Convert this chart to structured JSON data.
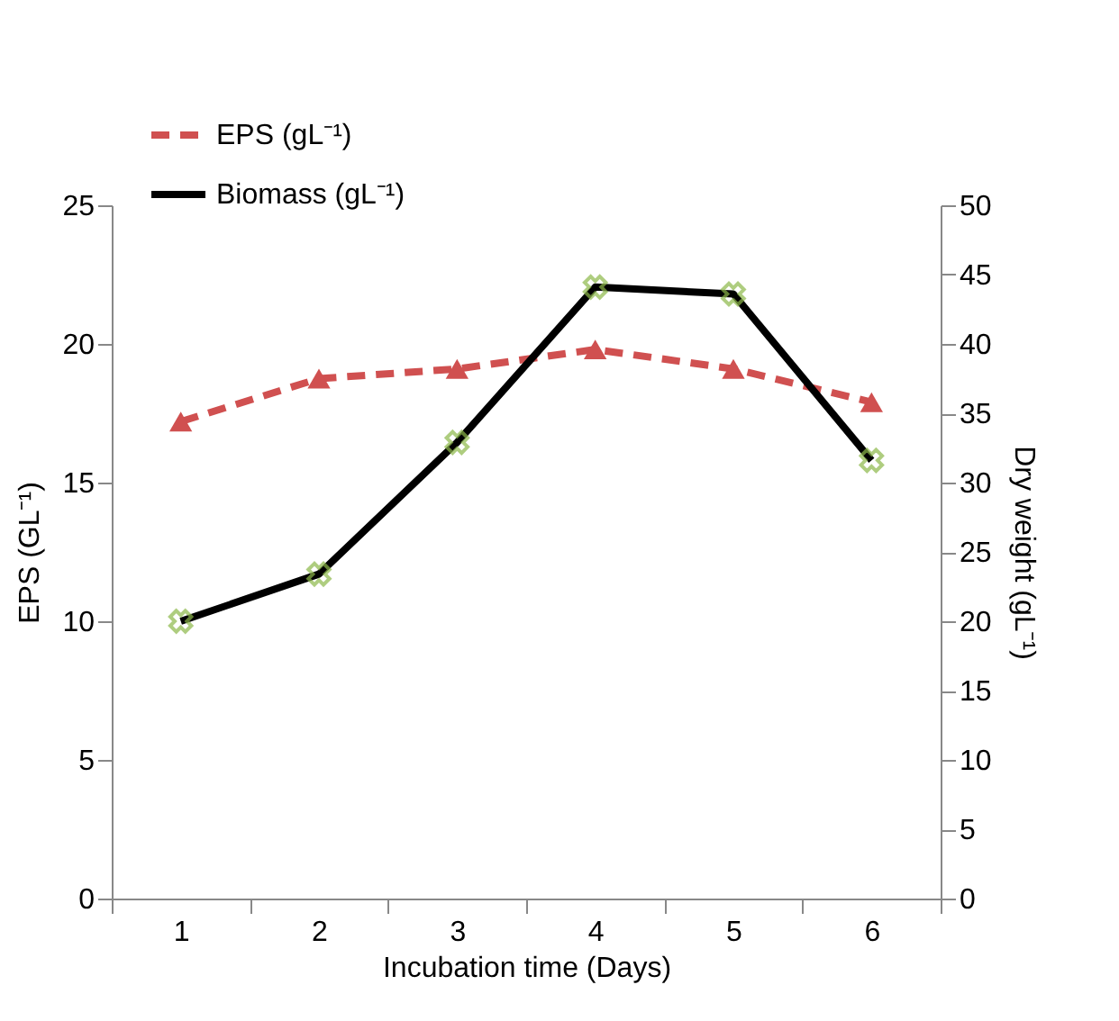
{
  "chart_data": {
    "type": "line",
    "xlabel": "Incubation time (Days)",
    "ylabel": "EPS (GL⁻¹)",
    "y2label": "Dry weight (gL⁻¹)",
    "categories": [
      "1",
      "2",
      "3",
      "4",
      "5",
      "6"
    ],
    "series": [
      {
        "name": "EPS (gL⁻¹)",
        "color": "#d05050",
        "values": [
          17.2,
          18.75,
          19.1,
          19.8,
          19.1,
          17.9
        ],
        "marker": "triangle",
        "line_style": "dashed"
      },
      {
        "name": "Biomass (gL⁻¹)",
        "color": "#000000",
        "colors": [
          "#8db84a",
          "#8db84a",
          "#8db84a",
          "#8db84a",
          "#8db84a",
          "#8db84a"
        ],
        "values": [
          20,
          23.4,
          32.9,
          44.1,
          43.6,
          31.6
        ],
        "marker": "cross",
        "line_style": "solid",
        "axis": "y2"
      }
    ],
    "ylim": [
      0,
      25
    ],
    "yticks": [
      0,
      5,
      10,
      15,
      20,
      25
    ],
    "y2lim": [
      0,
      50
    ],
    "y2ticks": [
      0,
      5,
      10,
      15,
      20,
      25,
      30,
      35,
      40,
      45,
      50
    ],
    "grid": false,
    "legend": "top left"
  }
}
